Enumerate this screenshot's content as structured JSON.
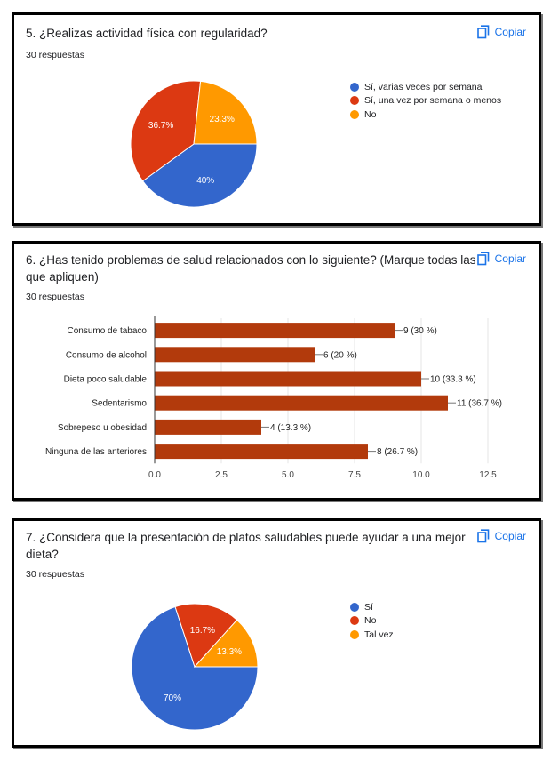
{
  "copy_label": "Copiar",
  "colors": {
    "blue": "#3366cc",
    "red": "#dc3912",
    "orange": "#ff9900",
    "bar": "#b23a0c",
    "link": "#1a73e8"
  },
  "q5": {
    "title": "5. ¿Realizas actividad física con regularidad?",
    "responses": "30 respuestas"
  },
  "q6": {
    "title_line1": "6. ¿Has tenido problemas de salud relacionados con lo siguiente? (Marque todas las",
    "title_line2": "que apliquen)",
    "responses": "30 respuestas"
  },
  "q7": {
    "title_line1": "7.  ¿Considera que la presentación de platos saludables puede ayudar a una mejor",
    "title_line2": "dieta?",
    "responses": "30 respuestas"
  },
  "chart_data": [
    {
      "type": "pie",
      "title": "5. ¿Realizas actividad física con regularidad?",
      "categories": [
        "Sí, varias veces por semana",
        "Sí, una vez por semana o menos",
        "No"
      ],
      "values": [
        40,
        36.7,
        23.3
      ],
      "labels": [
        "40%",
        "36.7%",
        "23.3%"
      ],
      "colors": [
        "#3366cc",
        "#dc3912",
        "#ff9900"
      ]
    },
    {
      "type": "bar",
      "orientation": "horizontal",
      "title": "6. ¿Has tenido problemas de salud relacionados con lo siguiente?",
      "categories": [
        "Consumo de tabaco",
        "Consumo de alcohol",
        "Dieta poco saludable",
        "Sedentarismo",
        "Sobrepeso u obesidad",
        "Ninguna de las anteriores"
      ],
      "values": [
        9,
        6,
        10,
        11,
        4,
        8
      ],
      "labels": [
        "9 (30 %)",
        "6 (20 %)",
        "10 (33.3 %)",
        "11 (36.7 %)",
        "4 (13.3 %)",
        "8 (26.7 %)"
      ],
      "xlim": [
        0,
        12.5
      ],
      "ticks": [
        "0.0",
        "2.5",
        "5.0",
        "7.5",
        "10.0",
        "12.5"
      ],
      "color": "#b23a0c"
    },
    {
      "type": "pie",
      "title": "7. ¿Considera que la presentación de platos saludables puede ayudar a una mejor dieta?",
      "categories": [
        "Sí",
        "No",
        "Tal vez"
      ],
      "values": [
        70,
        16.7,
        13.3
      ],
      "labels": [
        "70%",
        "16.7%",
        "13.3%"
      ],
      "colors": [
        "#3366cc",
        "#dc3912",
        "#ff9900"
      ]
    }
  ]
}
